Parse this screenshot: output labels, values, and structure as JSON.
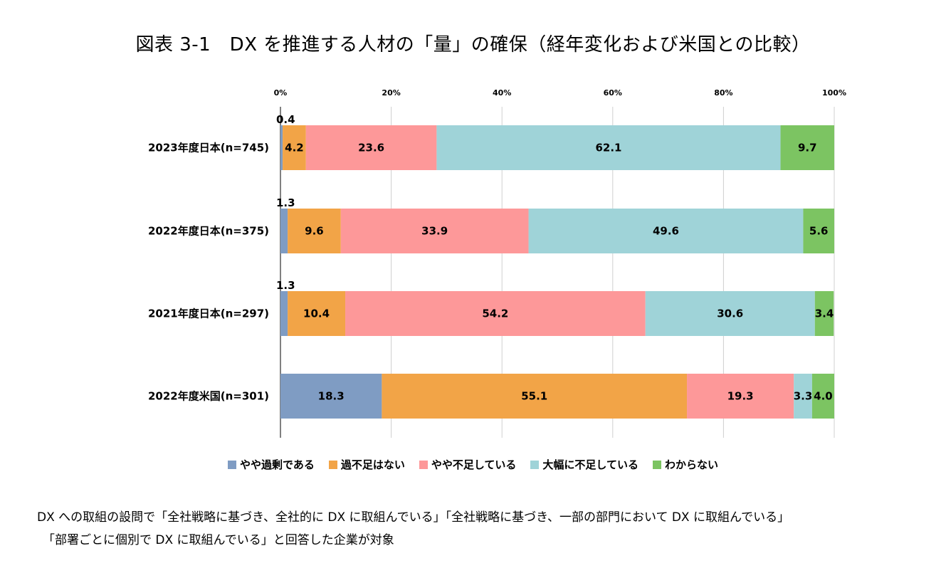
{
  "title": "図表 3-1　DX を推進する人材の「量」の確保（経年変化および米国との比較）",
  "note_line1": "DX への取組の設問で「全社戦略に基づき、全社的に DX に取組んでいる」「全社戦略に基づき、一部の部門において DX に取組んでいる」",
  "note_line2": "「部署ごとに個別で DX に取組んでいる」と回答した企業が対象",
  "chart_data": {
    "type": "bar",
    "orientation": "horizontal-stacked-100",
    "categories": [
      "2023年度日本(n=745)",
      "2022年度日本(n=375)",
      "2021年度日本(n=297)",
      "2022年度米国(n=301)"
    ],
    "series": [
      {
        "name": "やや過剰である",
        "color": "#7f9cc3",
        "values": [
          0.4,
          1.3,
          1.3,
          18.3
        ]
      },
      {
        "name": "過不足はない",
        "color": "#f2a447",
        "values": [
          4.2,
          9.6,
          10.4,
          55.1
        ]
      },
      {
        "name": "やや不足している",
        "color": "#fd9899",
        "values": [
          23.6,
          33.9,
          54.2,
          19.3
        ]
      },
      {
        "name": "大幅に不足している",
        "color": "#9fd3d8",
        "values": [
          62.1,
          49.6,
          30.6,
          3.3
        ]
      },
      {
        "name": "わからない",
        "color": "#7cc462",
        "values": [
          9.7,
          5.6,
          3.4,
          4.0
        ]
      }
    ],
    "value_labels": [
      [
        "0.4",
        "4.2",
        "23.6",
        "62.1",
        "9.7"
      ],
      [
        "1.3",
        "9.6",
        "33.9",
        "49.6",
        "5.6"
      ],
      [
        "1.3",
        "10.4",
        "54.2",
        "30.6",
        "3.4"
      ],
      [
        "18.3",
        "55.1",
        "19.3",
        "3.3",
        "4.0"
      ]
    ],
    "xlim": [
      0,
      100
    ],
    "x_ticks": [
      "0%",
      "20%",
      "40%",
      "60%",
      "80%",
      "100%"
    ],
    "grid": true,
    "legend": "bottom"
  }
}
